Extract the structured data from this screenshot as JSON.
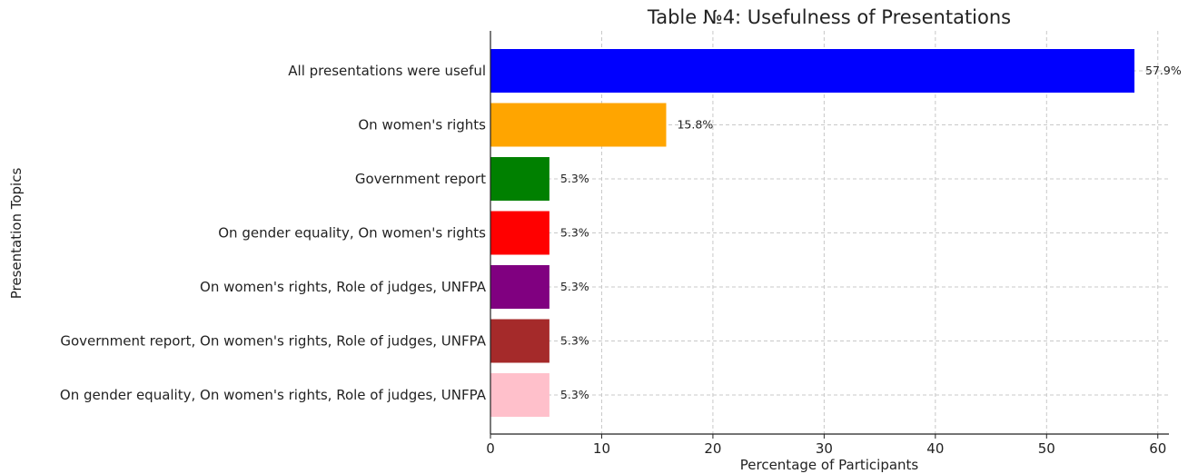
{
  "chart_data": {
    "type": "bar",
    "orientation": "horizontal",
    "title": "Table №4: Usefulness of Presentations",
    "xlabel": "Percentage of Participants",
    "ylabel": "Presentation Topics",
    "xlim": [
      0,
      61
    ],
    "xticks": [
      0,
      10,
      20,
      30,
      40,
      50,
      60
    ],
    "grid": true,
    "bars": [
      {
        "category": "All presentations were useful",
        "value": 57.9,
        "label": "57.9%",
        "color": "#0000ff"
      },
      {
        "category": "On women's rights",
        "value": 15.8,
        "label": "15.8%",
        "color": "#ffa500"
      },
      {
        "category": "Government report",
        "value": 5.3,
        "label": "5.3%",
        "color": "#008000"
      },
      {
        "category": "On gender equality, On women's rights",
        "value": 5.3,
        "label": "5.3%",
        "color": "#ff0000"
      },
      {
        "category": "On women's rights, Role of judges, UNFPA",
        "value": 5.3,
        "label": "5.3%",
        "color": "#800080"
      },
      {
        "category": "Government report, On women's rights, Role of judges, UNFPA",
        "value": 5.3,
        "label": "5.3%",
        "color": "#a52a2a"
      },
      {
        "category": "On gender equality, On women's rights, Role of judges, UNFPA",
        "value": 5.3,
        "label": "5.3%",
        "color": "#ffc0cb"
      }
    ]
  }
}
